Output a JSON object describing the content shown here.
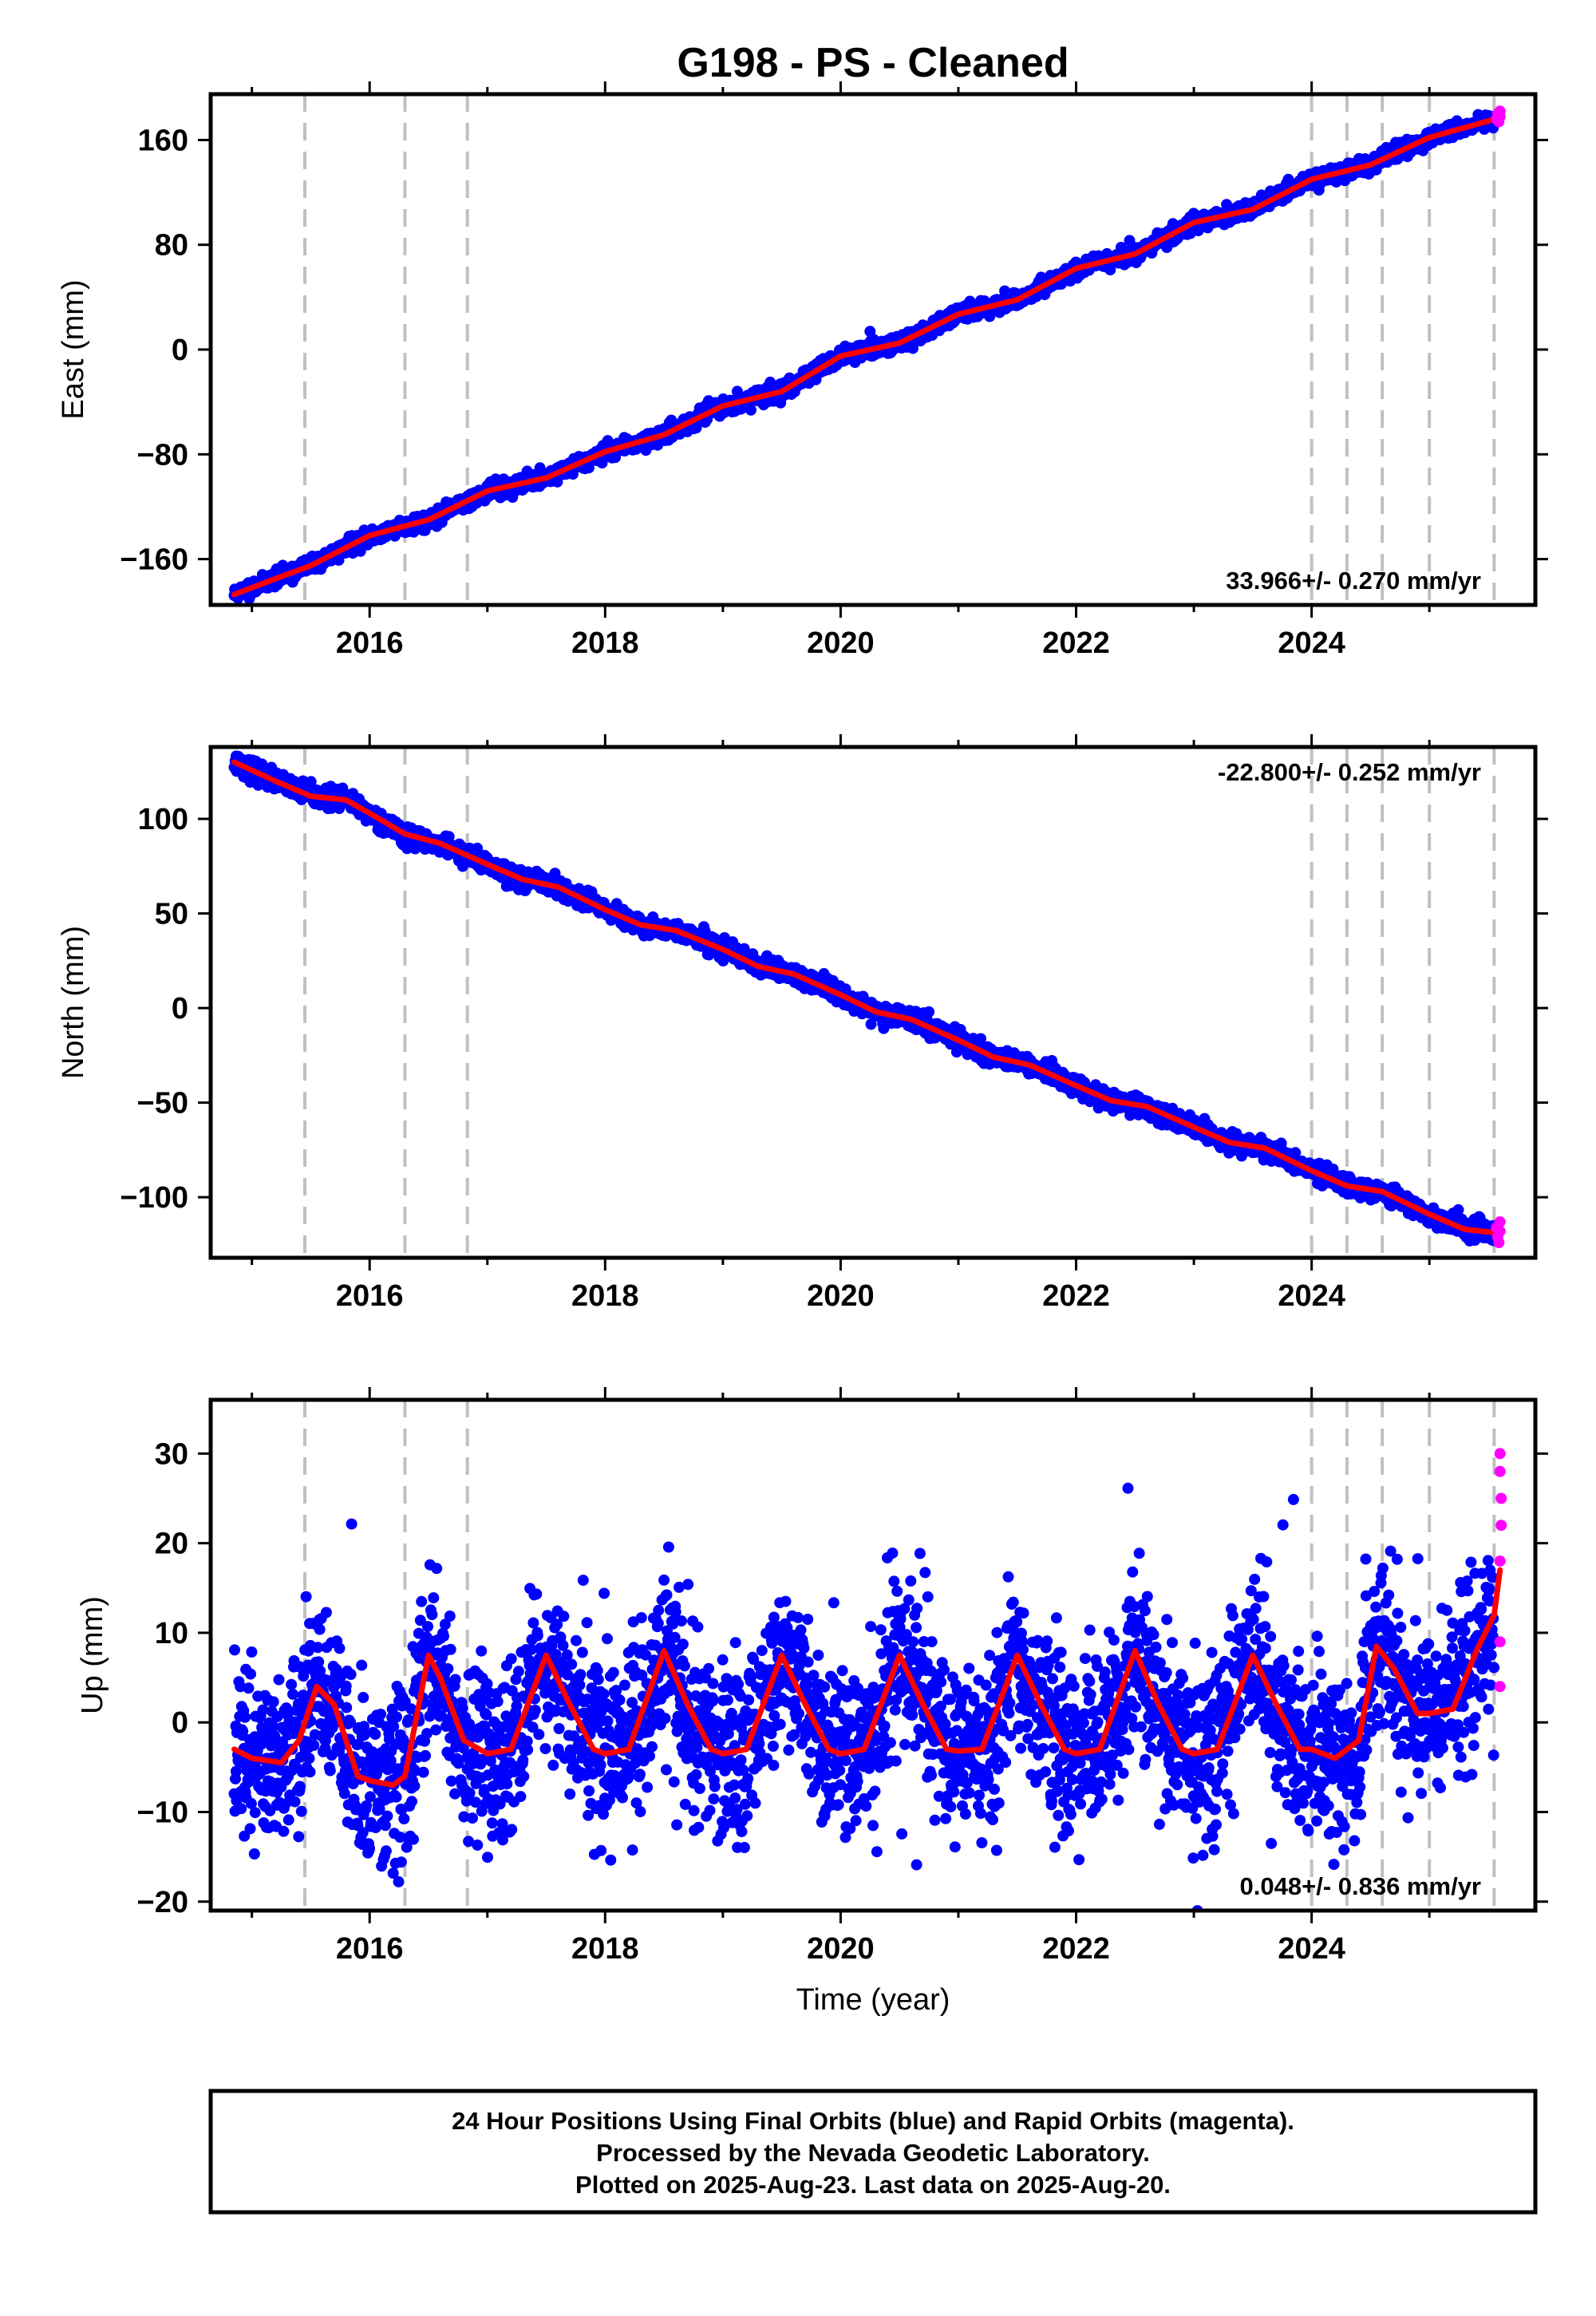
{
  "title": "G198  - PS - Cleaned",
  "x_axis_label": "Time (year)",
  "colors": {
    "final_orbits": "#0000ff",
    "rapid_orbits": "#ff00ff",
    "model": "#ff0000",
    "steps": "#c0c0c0"
  },
  "footer": {
    "line1": "24 Hour Positions Using Final Orbits (blue) and Rapid Orbits (magenta).",
    "line2": "Processed by the Nevada Geodetic Laboratory.",
    "line3": "Plotted on 2025-Aug-23. Last data on 2025-Aug-20."
  },
  "chart_data": [
    {
      "type": "scatter",
      "component": "east",
      "ylabel": "East (mm)",
      "xlim": [
        2014.65,
        2025.9
      ],
      "ylim": [
        -195,
        195
      ],
      "xticks": [
        2016,
        2018,
        2020,
        2022,
        2024
      ],
      "xtick_labels": [
        "2016",
        "2018",
        "2020",
        "2022",
        "2024"
      ],
      "yticks": [
        -160,
        -80,
        0,
        80,
        160
      ],
      "ytick_labels": [
        "−160",
        "−80",
        "0",
        "80",
        "160"
      ],
      "rate_label": "33.966+/- 0.270 mm/yr",
      "rate_mm_per_yr": 33.966,
      "equipment_changes": [
        2015.45,
        2016.3,
        2016.83,
        2024.0,
        2024.3,
        2024.6,
        2025.0,
        2025.55
      ],
      "model_line": [
        [
          2014.85,
          -187
        ],
        [
          2015.2,
          -175
        ],
        [
          2015.5,
          -165
        ],
        [
          2016.0,
          -142
        ],
        [
          2016.5,
          -130
        ],
        [
          2017.0,
          -108
        ],
        [
          2017.5,
          -98
        ],
        [
          2018.0,
          -78
        ],
        [
          2018.5,
          -65
        ],
        [
          2019.0,
          -43
        ],
        [
          2019.5,
          -32
        ],
        [
          2020.0,
          -5
        ],
        [
          2020.5,
          5
        ],
        [
          2021.0,
          27
        ],
        [
          2021.5,
          38
        ],
        [
          2022.0,
          62
        ],
        [
          2022.5,
          73
        ],
        [
          2023.0,
          97
        ],
        [
          2023.5,
          107
        ],
        [
          2024.0,
          130
        ],
        [
          2024.5,
          141
        ],
        [
          2025.0,
          162
        ],
        [
          2025.6,
          177
        ]
      ],
      "final_points_seed": 11,
      "final_points_scatter_mm": 3.0,
      "rapid_points": [
        [
          2025.57,
          176
        ],
        [
          2025.58,
          180
        ],
        [
          2025.59,
          174
        ],
        [
          2025.6,
          182
        ],
        [
          2025.6,
          178
        ]
      ]
    },
    {
      "type": "scatter",
      "component": "north",
      "ylabel": "North (mm)",
      "xlim": [
        2014.65,
        2025.9
      ],
      "ylim": [
        -132,
        138
      ],
      "xticks": [
        2016,
        2018,
        2020,
        2022,
        2024
      ],
      "xtick_labels": [
        "2016",
        "2018",
        "2020",
        "2022",
        "2024"
      ],
      "yticks": [
        -100,
        -50,
        0,
        50,
        100
      ],
      "ytick_labels": [
        "−100",
        "−50",
        "0",
        "50",
        "100"
      ],
      "rate_label": "-22.800+/- 0.252 mm/yr",
      "rate_mm_per_yr": -22.8,
      "equipment_changes": [
        2015.45,
        2016.3,
        2016.83,
        2024.0,
        2024.3,
        2024.6,
        2025.0,
        2025.55
      ],
      "model_line": [
        [
          2014.85,
          130
        ],
        [
          2015.2,
          120
        ],
        [
          2015.5,
          112
        ],
        [
          2015.8,
          110
        ],
        [
          2016.0,
          103
        ],
        [
          2016.3,
          92
        ],
        [
          2016.6,
          87
        ],
        [
          2017.0,
          76
        ],
        [
          2017.3,
          68
        ],
        [
          2017.6,
          64
        ],
        [
          2018.0,
          52
        ],
        [
          2018.3,
          44
        ],
        [
          2018.6,
          41
        ],
        [
          2019.0,
          31
        ],
        [
          2019.3,
          22
        ],
        [
          2019.6,
          18
        ],
        [
          2020.0,
          7
        ],
        [
          2020.3,
          -2
        ],
        [
          2020.6,
          -6
        ],
        [
          2021.0,
          -17
        ],
        [
          2021.3,
          -26
        ],
        [
          2021.6,
          -30
        ],
        [
          2022.0,
          -41
        ],
        [
          2022.3,
          -49
        ],
        [
          2022.6,
          -52
        ],
        [
          2023.0,
          -63
        ],
        [
          2023.3,
          -71
        ],
        [
          2023.6,
          -74
        ],
        [
          2024.0,
          -86
        ],
        [
          2024.3,
          -94
        ],
        [
          2024.6,
          -97
        ],
        [
          2025.0,
          -109
        ],
        [
          2025.3,
          -117
        ],
        [
          2025.6,
          -119
        ]
      ],
      "final_points_seed": 23,
      "final_points_scatter_mm": 2.5,
      "rapid_points": [
        [
          2025.57,
          -116
        ],
        [
          2025.58,
          -121
        ],
        [
          2025.59,
          -124
        ],
        [
          2025.6,
          -118
        ],
        [
          2025.6,
          -113
        ]
      ]
    },
    {
      "type": "scatter",
      "component": "up",
      "ylabel": "Up (mm)",
      "xlim": [
        2014.65,
        2025.9
      ],
      "ylim": [
        -21,
        36
      ],
      "xticks": [
        2016,
        2018,
        2020,
        2022,
        2024
      ],
      "xtick_labels": [
        "2016",
        "2018",
        "2020",
        "2022",
        "2024"
      ],
      "yticks": [
        -20,
        -10,
        0,
        10,
        20,
        30
      ],
      "ytick_labels": [
        "−20",
        "−10",
        "0",
        "10",
        "20",
        "30"
      ],
      "rate_label": "0.048+/- 0.836 mm/yr",
      "rate_mm_per_yr": 0.048,
      "equipment_changes": [
        2015.45,
        2016.3,
        2016.83,
        2024.0,
        2024.3,
        2024.6,
        2025.0,
        2025.55
      ],
      "model_line": [
        [
          2014.85,
          -3
        ],
        [
          2015.0,
          -4
        ],
        [
          2015.25,
          -4.5
        ],
        [
          2015.4,
          -2
        ],
        [
          2015.55,
          4
        ],
        [
          2015.7,
          2
        ],
        [
          2015.9,
          -6
        ],
        [
          2016.0,
          -6.5
        ],
        [
          2016.2,
          -7
        ],
        [
          2016.3,
          -6
        ],
        [
          2016.5,
          7.5
        ],
        [
          2016.6,
          5
        ],
        [
          2016.8,
          -2
        ],
        [
          2017.0,
          -3.5
        ],
        [
          2017.2,
          -3
        ],
        [
          2017.5,
          7.5
        ],
        [
          2017.7,
          2
        ],
        [
          2017.9,
          -3
        ],
        [
          2018.0,
          -3.5
        ],
        [
          2018.2,
          -3
        ],
        [
          2018.5,
          8
        ],
        [
          2018.7,
          2
        ],
        [
          2018.9,
          -3
        ],
        [
          2019.0,
          -3.5
        ],
        [
          2019.2,
          -3
        ],
        [
          2019.5,
          7.5
        ],
        [
          2019.7,
          2
        ],
        [
          2019.9,
          -3
        ],
        [
          2020.0,
          -3.5
        ],
        [
          2020.2,
          -3
        ],
        [
          2020.5,
          7.5
        ],
        [
          2020.7,
          2
        ],
        [
          2020.9,
          -3
        ],
        [
          2021.0,
          -3.2
        ],
        [
          2021.2,
          -3
        ],
        [
          2021.5,
          7.5
        ],
        [
          2021.7,
          2
        ],
        [
          2021.9,
          -3
        ],
        [
          2022.0,
          -3.5
        ],
        [
          2022.2,
          -3
        ],
        [
          2022.5,
          8
        ],
        [
          2022.7,
          2
        ],
        [
          2022.9,
          -3
        ],
        [
          2023.0,
          -3.5
        ],
        [
          2023.2,
          -3
        ],
        [
          2023.5,
          7.5
        ],
        [
          2023.7,
          2
        ],
        [
          2023.9,
          -3
        ],
        [
          2024.0,
          -3
        ],
        [
          2024.2,
          -4
        ],
        [
          2024.4,
          -2
        ],
        [
          2024.55,
          8.5
        ],
        [
          2024.7,
          6
        ],
        [
          2024.9,
          1
        ],
        [
          2025.0,
          1
        ],
        [
          2025.2,
          1.5
        ],
        [
          2025.4,
          8
        ],
        [
          2025.55,
          12
        ],
        [
          2025.6,
          17
        ]
      ],
      "final_points_seed": 37,
      "final_points_scatter_mm": 4.5,
      "rapid_points": [
        [
          2025.6,
          30
        ],
        [
          2025.6,
          28
        ],
        [
          2025.61,
          25
        ],
        [
          2025.61,
          22
        ],
        [
          2025.6,
          18
        ],
        [
          2025.6,
          9
        ],
        [
          2025.6,
          4
        ]
      ]
    }
  ]
}
